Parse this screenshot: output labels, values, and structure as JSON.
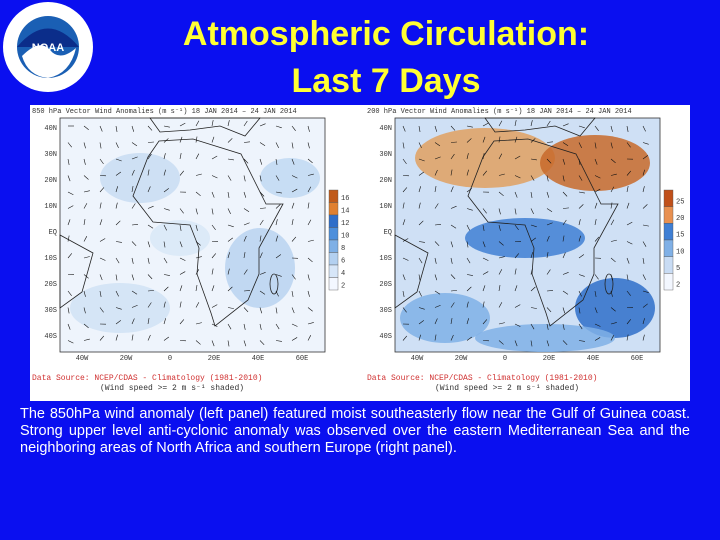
{
  "header": {
    "title_lines": [
      "Atmospheric Circulation:",
      "Last 7 Days"
    ]
  },
  "panels": [
    {
      "title": "850 hPa Vector Wind Anomalies (m s⁻¹) 18 JAN 2014 – 24 JAN 2014",
      "lat_labels": [
        "40N",
        "30N",
        "20N",
        "10N",
        "EQ",
        "10S",
        "20S",
        "30S",
        "40S"
      ],
      "lon_labels": [
        "40W",
        "20W",
        "0",
        "20E",
        "40E",
        "60E"
      ],
      "colorbar_labels": [
        "16",
        "14",
        "12",
        "10",
        "8",
        "6",
        "4",
        "2"
      ],
      "source": "Data Source: NCEP/CDAS - Climatology (1981-2010)",
      "note": "(Wind speed >= 2 m s⁻¹ shaded)"
    },
    {
      "title": "200 hPa Vector Wind Anomalies (m s⁻¹) 18 JAN 2014 – 24 JAN 2014",
      "lat_labels": [
        "40N",
        "30N",
        "20N",
        "10N",
        "EQ",
        "10S",
        "20S",
        "30S",
        "40S"
      ],
      "lon_labels": [
        "40W",
        "20W",
        "0",
        "20E",
        "40E",
        "60E"
      ],
      "colorbar_labels": [
        "25",
        "20",
        "15",
        "10",
        "5",
        "2"
      ],
      "source": "Data Source: NCEP/CDAS - Climatology (1981-2010)",
      "note": "(Wind speed >= 2 m s⁻¹ shaded)"
    }
  ],
  "body": {
    "text": "The 850hPa wind anomaly (left panel) featured moist southeasterly flow near the Gulf of Guinea coast. Strong upper level anti-cyclonic anomaly was observed over the eastern Mediterranean Sea and the neighboring areas of North Africa and southern Europe (right panel)."
  }
}
